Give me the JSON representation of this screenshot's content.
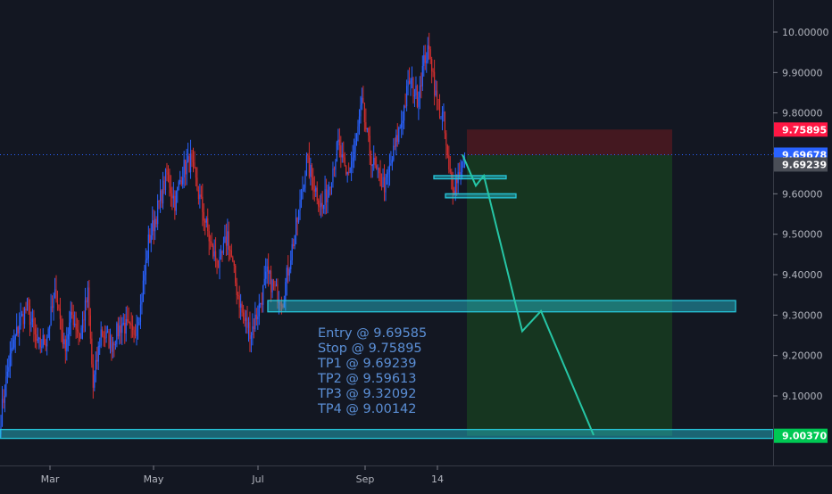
{
  "colors": {
    "background": "#131722",
    "up_candle": "#2962ff",
    "down_candle": "#d32f2f",
    "zone": "#26c6da",
    "target_fill": "#1b5e20",
    "stop_fill": "#6d1a1f",
    "path": "#26c6a6",
    "label_stop": "#ff1744",
    "label_current": "#2962ff",
    "label_tp1": "#4a4e57",
    "label_target": "#00c853",
    "annotation_text": "#5b8fd6"
  },
  "chart_data": {
    "type": "candlestick",
    "x_labels": [
      "Mar",
      "May",
      "Jul",
      "Sep",
      "14"
    ],
    "y_ticks": [
      "10.00000",
      "9.90000",
      "9.80000",
      "9.70000",
      "9.60000",
      "9.50000",
      "9.40000",
      "9.30000",
      "9.20000",
      "9.10000"
    ],
    "ylim": [
      8.87,
      10.1
    ],
    "price_labels": {
      "stop": "9.75895",
      "current": "9.69678",
      "tp1": "9.69239",
      "target": "9.00370"
    },
    "current_price": 9.69678,
    "trade": {
      "entry": 9.69585,
      "stop": 9.75895,
      "tp1": 9.69239,
      "tp2": 9.59613,
      "tp3": 9.32092,
      "tp4": 9.00142
    },
    "zones": [
      {
        "low": 9.308,
        "high": 9.336
      },
      {
        "low": 8.995,
        "high": 9.017
      },
      {
        "low": 9.637,
        "high": 9.645
      },
      {
        "low": 9.59,
        "high": 9.6
      }
    ],
    "projected_path": [
      {
        "t": 0,
        "price": 9.697
      },
      {
        "t": 1,
        "price": 9.62
      },
      {
        "t": 2,
        "price": 9.645
      },
      {
        "t": 3,
        "price": 9.26
      },
      {
        "t": 4,
        "price": 9.31
      },
      {
        "t": 5,
        "price": 9.003
      }
    ],
    "close_anchors": [
      {
        "d": 0,
        "v": 9.05
      },
      {
        "d": 6,
        "v": 9.18
      },
      {
        "d": 14,
        "v": 9.28
      },
      {
        "d": 20,
        "v": 9.32
      },
      {
        "d": 28,
        "v": 9.22
      },
      {
        "d": 34,
        "v": 9.24
      },
      {
        "d": 42,
        "v": 9.36
      },
      {
        "d": 48,
        "v": 9.22
      },
      {
        "d": 54,
        "v": 9.3
      },
      {
        "d": 60,
        "v": 9.25
      },
      {
        "d": 66,
        "v": 9.35
      },
      {
        "d": 70,
        "v": 9.12
      },
      {
        "d": 76,
        "v": 9.26
      },
      {
        "d": 84,
        "v": 9.23
      },
      {
        "d": 92,
        "v": 9.28
      },
      {
        "d": 100,
        "v": 9.25
      },
      {
        "d": 106,
        "v": 9.32
      },
      {
        "d": 112,
        "v": 9.48
      },
      {
        "d": 118,
        "v": 9.55
      },
      {
        "d": 126,
        "v": 9.65
      },
      {
        "d": 132,
        "v": 9.58
      },
      {
        "d": 138,
        "v": 9.66
      },
      {
        "d": 144,
        "v": 9.68
      },
      {
        "d": 150,
        "v": 9.6
      },
      {
        "d": 156,
        "v": 9.52
      },
      {
        "d": 160,
        "v": 9.46
      },
      {
        "d": 166,
        "v": 9.42
      },
      {
        "d": 172,
        "v": 9.5
      },
      {
        "d": 178,
        "v": 9.38
      },
      {
        "d": 184,
        "v": 9.29
      },
      {
        "d": 190,
        "v": 9.26
      },
      {
        "d": 196,
        "v": 9.32
      },
      {
        "d": 202,
        "v": 9.4
      },
      {
        "d": 208,
        "v": 9.36
      },
      {
        "d": 214,
        "v": 9.34
      },
      {
        "d": 220,
        "v": 9.45
      },
      {
        "d": 226,
        "v": 9.55
      },
      {
        "d": 232,
        "v": 9.68
      },
      {
        "d": 238,
        "v": 9.62
      },
      {
        "d": 244,
        "v": 9.56
      },
      {
        "d": 250,
        "v": 9.64
      },
      {
        "d": 256,
        "v": 9.72
      },
      {
        "d": 262,
        "v": 9.64
      },
      {
        "d": 268,
        "v": 9.7
      },
      {
        "d": 274,
        "v": 9.82
      },
      {
        "d": 280,
        "v": 9.7
      },
      {
        "d": 286,
        "v": 9.64
      },
      {
        "d": 292,
        "v": 9.62
      },
      {
        "d": 298,
        "v": 9.7
      },
      {
        "d": 304,
        "v": 9.78
      },
      {
        "d": 310,
        "v": 9.88
      },
      {
        "d": 316,
        "v": 9.84
      },
      {
        "d": 322,
        "v": 9.94
      },
      {
        "d": 326,
        "v": 9.95
      },
      {
        "d": 330,
        "v": 9.84
      },
      {
        "d": 336,
        "v": 9.78
      },
      {
        "d": 340,
        "v": 9.65
      },
      {
        "d": 344,
        "v": 9.62
      },
      {
        "d": 348,
        "v": 9.66
      },
      {
        "d": 352,
        "v": 9.69
      }
    ]
  },
  "annotation": {
    "entry": "Entry @ 9.69585",
    "stop": "Stop @ 9.75895",
    "tp1": "TP1 @ 9.69239",
    "tp2": "TP2 @ 9.59613",
    "tp3": "TP3 @ 9.32092",
    "tp4": "TP4 @ 9.00142"
  }
}
